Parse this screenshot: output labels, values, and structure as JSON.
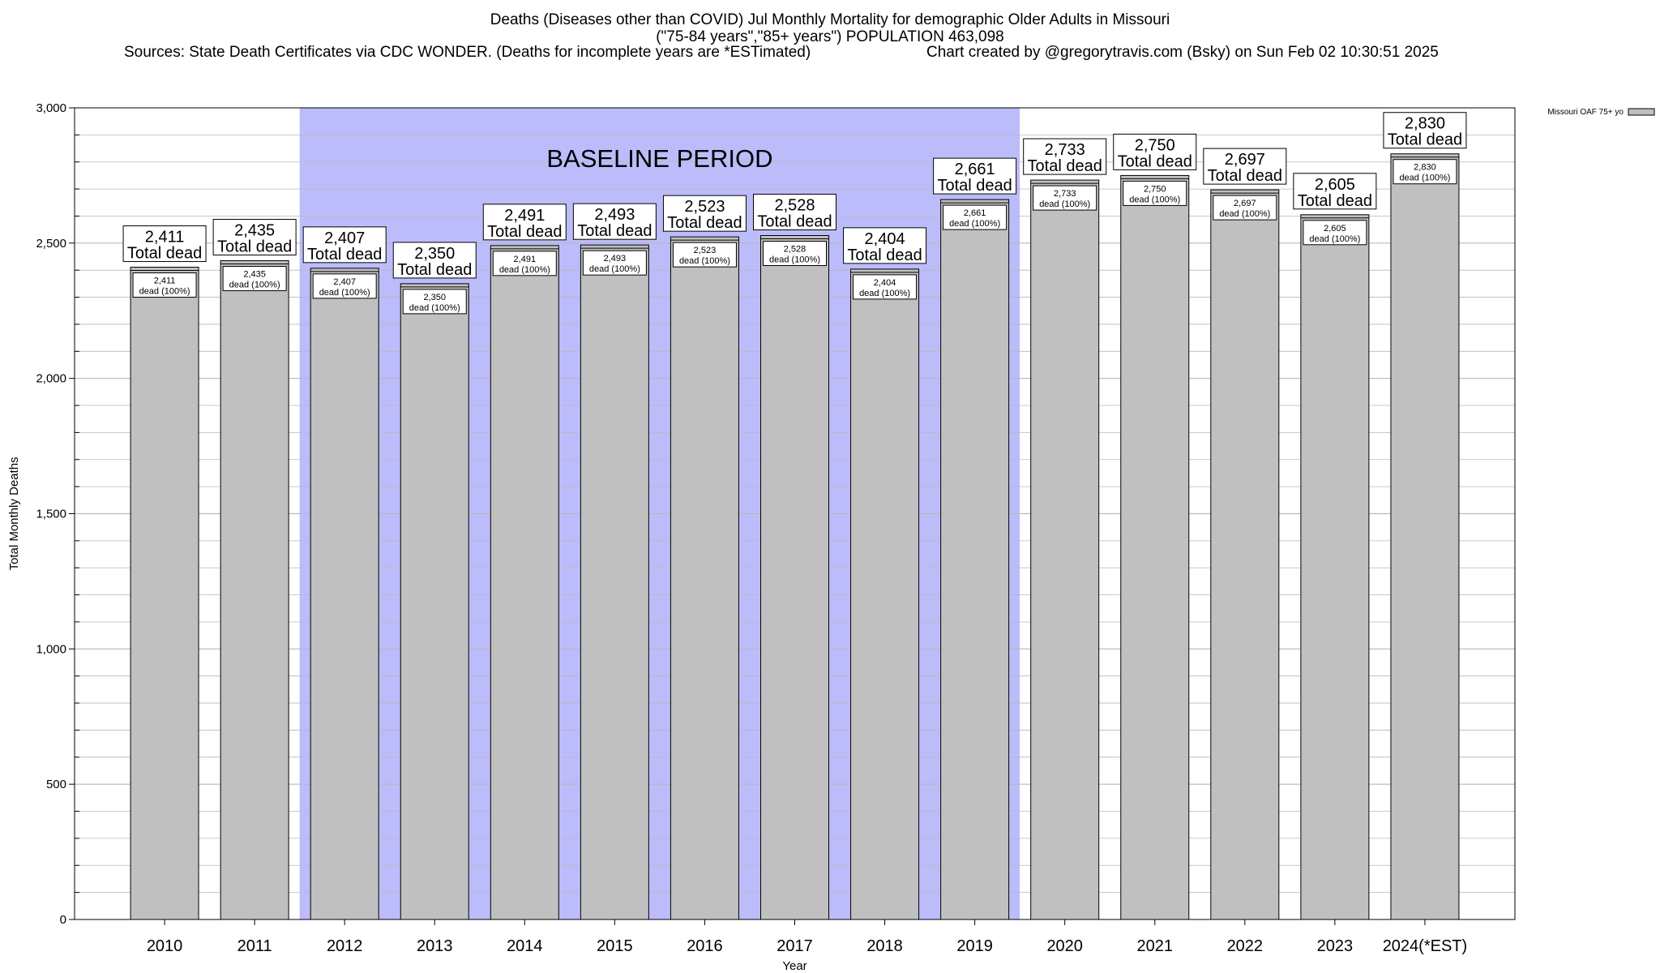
{
  "header": {
    "title_line1": "Deaths (Diseases other than COVID) Jul Monthly Mortality for demographic Older Adults in Missouri",
    "title_line2": "(\"75-84 years\",\"85+ years\") POPULATION 463,098",
    "sources": "Sources: State Death Certificates via CDC WONDER. (Deaths for incomplete years are *ESTimated)",
    "credit": "Chart created by @gregorytravis.com (Bsky) on Sun Feb 02 10:30:51 2025"
  },
  "chart_data": {
    "type": "bar",
    "xlabel": "Year",
    "ylabel": "Total Monthly Deaths",
    "ylim": [
      0,
      3000
    ],
    "yticks": [
      0,
      500,
      1000,
      1500,
      2000,
      2500,
      3000
    ],
    "ytick_labels": [
      "0",
      "500",
      "1,000",
      "1,500",
      "2,000",
      "2,500",
      "3,000"
    ],
    "grid": true,
    "categories": [
      "2010",
      "2011",
      "2012",
      "2013",
      "2014",
      "2015",
      "2016",
      "2017",
      "2018",
      "2019",
      "2020",
      "2021",
      "2022",
      "2023",
      "2024(*EST)"
    ],
    "series": [
      {
        "name": "Missouri OAF 75+ yo",
        "values": [
          2411,
          2435,
          2407,
          2350,
          2491,
          2493,
          2523,
          2528,
          2404,
          2661,
          2733,
          2750,
          2697,
          2605,
          2830
        ]
      }
    ],
    "value_labels": [
      "2,411",
      "2,435",
      "2,407",
      "2,350",
      "2,491",
      "2,493",
      "2,523",
      "2,528",
      "2,404",
      "2,661",
      "2,733",
      "2,750",
      "2,697",
      "2,605",
      "2,830"
    ],
    "total_label_suffix": "Total dead",
    "inner_label_suffix": "dead (100%)",
    "legend_position": "top-right",
    "baseline": {
      "label": "BASELINE PERIOD",
      "from": "2012",
      "to": "2019",
      "color": "#bcbcfb"
    },
    "colors": {
      "bar_fill": "#c0c0c0",
      "bar_stroke": "#000000",
      "baseline_band": "#bcbcfb",
      "gridline": "#b8b8b8"
    }
  }
}
